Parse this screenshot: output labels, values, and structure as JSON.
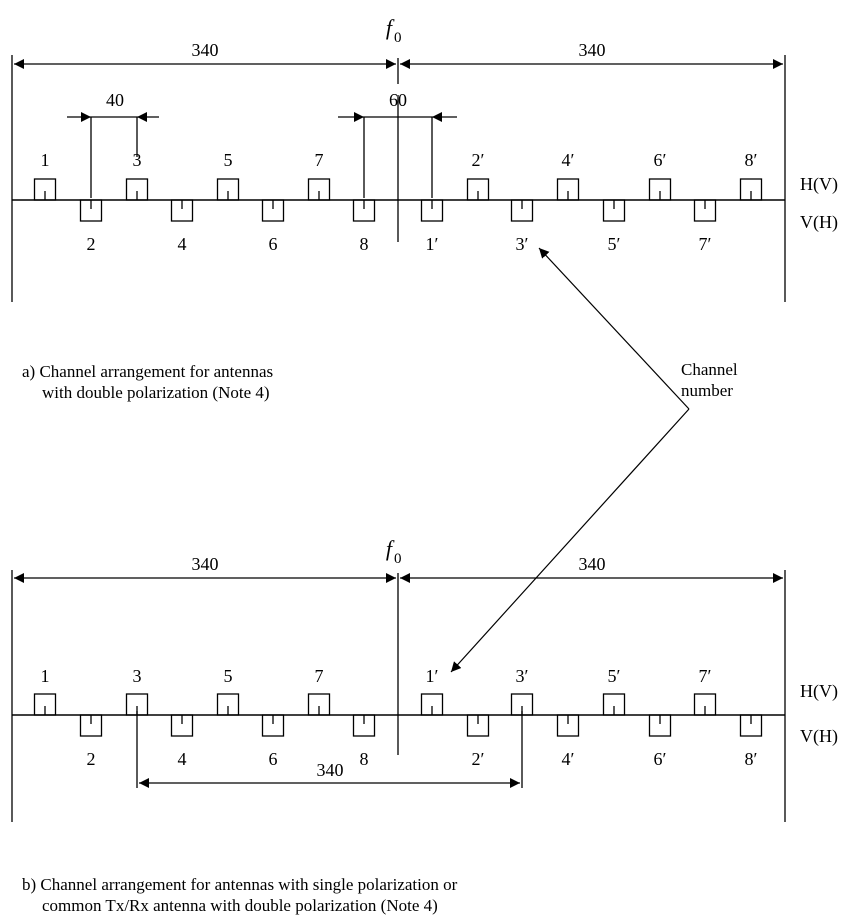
{
  "diagram_a": {
    "f0_base": "f",
    "f0_sub": "0",
    "span_left": "340",
    "span_right": "340",
    "spacing_label": "40",
    "center_gap_label": "60",
    "pol_upper": "H(V)",
    "pol_lower": "V(H)",
    "upper_channels": [
      "1",
      "3",
      "5",
      "7",
      "2′",
      "4′",
      "6′",
      "8′"
    ],
    "lower_channels": [
      "2",
      "4",
      "6",
      "8",
      "1′",
      "3′",
      "5′",
      "7′"
    ],
    "caption_line1": "a)  Channel arrangement for antennas",
    "caption_line2": "with double polarization (Note 4)"
  },
  "callout": {
    "line1": "Channel",
    "line2": "number"
  },
  "diagram_b": {
    "f0_base": "f",
    "f0_sub": "0",
    "span_left": "340",
    "span_right": "340",
    "duplex_label": "340",
    "pol_upper": "H(V)",
    "pol_lower": "V(H)",
    "upper_channels": [
      "1",
      "3",
      "5",
      "7",
      "1′",
      "3′",
      "5′",
      "7′"
    ],
    "lower_channels": [
      "2",
      "4",
      "6",
      "8",
      "2′",
      "4′",
      "6′",
      "8′"
    ],
    "caption_line1": "b)  Channel arrangement for antennas with single polarization or",
    "caption_line2": "common Tx/Rx antenna with double polarization (Note 4)"
  }
}
